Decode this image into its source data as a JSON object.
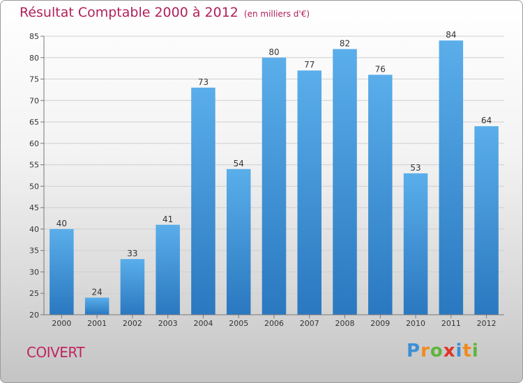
{
  "header": {
    "title": "Résultat Comptable 2000 à 2012",
    "unit": "(en milliers d'€)"
  },
  "footer": {
    "commune": "COIVERT",
    "logo_letters": [
      "P",
      "r",
      "o",
      "x",
      "i",
      "t",
      "i"
    ],
    "logo_colors": [
      "#3d8fd6",
      "#f08a1c",
      "#5fb53a",
      "#e0332a",
      "#3d8fd6",
      "#f08a1c",
      "#5fb53a"
    ]
  },
  "chart_data": {
    "type": "bar",
    "title": "Résultat Comptable 2000 à 2012",
    "categories": [
      "2000",
      "2001",
      "2002",
      "2003",
      "2004",
      "2005",
      "2006",
      "2007",
      "2008",
      "2009",
      "2010",
      "2011",
      "2012"
    ],
    "values": [
      40,
      24,
      33,
      41,
      73,
      54,
      80,
      77,
      82,
      76,
      53,
      84,
      64
    ],
    "ylim": [
      20,
      85
    ],
    "yticks": [
      20,
      25,
      30,
      35,
      40,
      45,
      50,
      55,
      60,
      65,
      70,
      75,
      80,
      85
    ],
    "grid": true,
    "legend": "none",
    "colors": {
      "bar_top": "#5aaeea",
      "bar_bottom": "#2a78c0"
    }
  }
}
